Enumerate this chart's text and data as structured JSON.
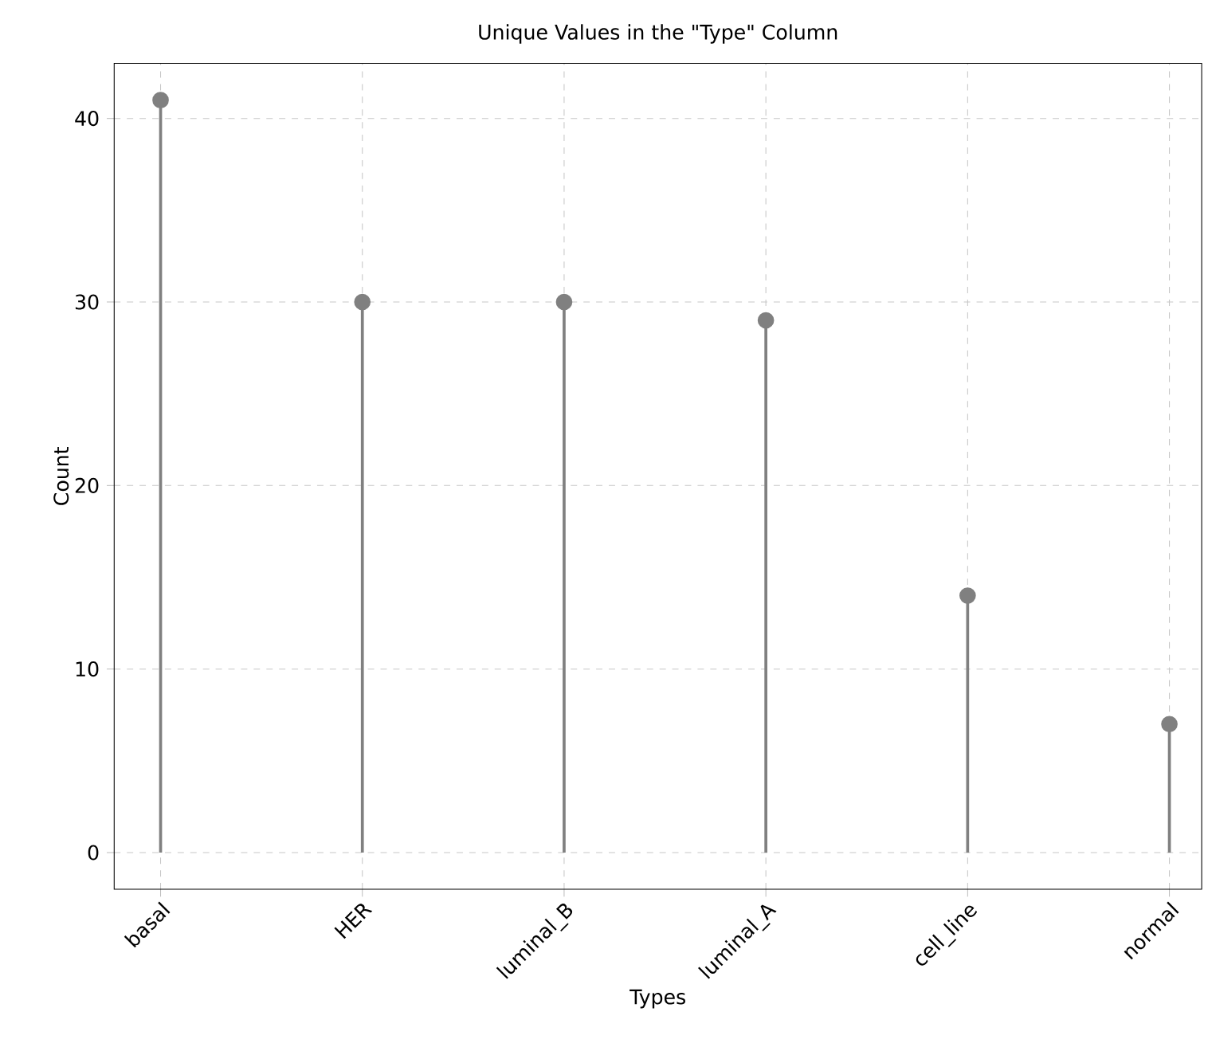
{
  "chart_data": {
    "type": "lollipop",
    "title": "Unique Values in the \"Type\" Column",
    "xlabel": "Types",
    "ylabel": "Count",
    "categories": [
      "basal",
      "HER",
      "luminal_B",
      "luminal_A",
      "cell_line",
      "normal"
    ],
    "values": [
      41,
      30,
      30,
      29,
      14,
      7
    ],
    "color": "#808080",
    "marker": "circle",
    "ylim": [
      -2,
      43
    ],
    "yticks": [
      0,
      10,
      20,
      30,
      40
    ],
    "grid": true
  }
}
